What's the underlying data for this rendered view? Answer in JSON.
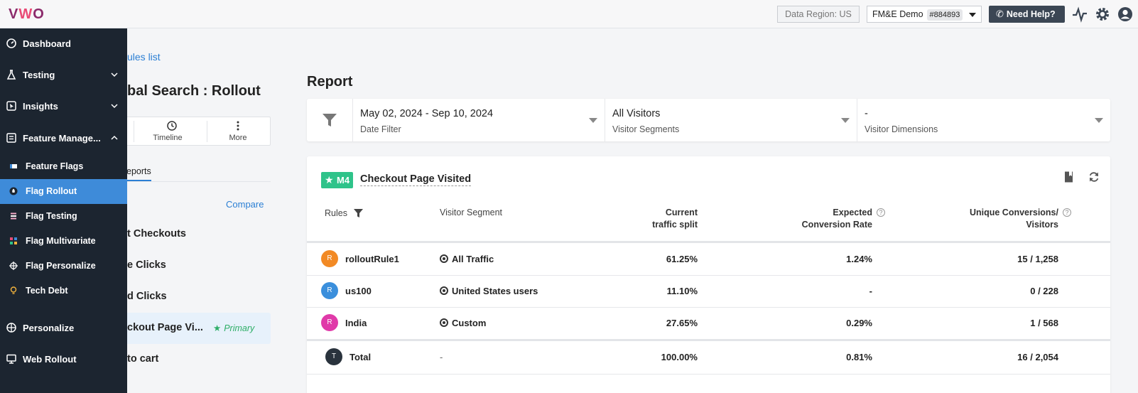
{
  "topbar": {
    "logo": "VWO",
    "data_region": "Data Region: US",
    "account_name": "FM&E Demo",
    "account_id": "#884893",
    "help_label": "Need Help?"
  },
  "sidebar": {
    "items": [
      {
        "label": "Dashboard"
      },
      {
        "label": "Testing"
      },
      {
        "label": "Insights"
      },
      {
        "label": "Feature Manage..."
      }
    ],
    "sub_items": [
      {
        "label": "Feature Flags"
      },
      {
        "label": "Flag Rollout"
      },
      {
        "label": "Flag Testing"
      },
      {
        "label": "Flag Multivariate"
      },
      {
        "label": "Flag Personalize"
      },
      {
        "label": "Tech Debt"
      }
    ],
    "bottom_items": [
      {
        "label": "Personalize"
      },
      {
        "label": "Web Rollout"
      }
    ]
  },
  "campaign": {
    "back_link": "ules list",
    "title": "bal Search : Rollout",
    "actions": {
      "timeline": "Timeline",
      "more": "More"
    },
    "tab_reports": "eports",
    "compare": "Compare",
    "goals": [
      {
        "label": "t Checkouts"
      },
      {
        "label": "e Clicks"
      },
      {
        "label": "d Clicks"
      },
      {
        "label": "ckout Page Vi...",
        "primary": "Primary"
      },
      {
        "label": "to cart"
      }
    ]
  },
  "report": {
    "heading": "Report",
    "filters": [
      {
        "value": "May 02, 2024 - Sep 10, 2024",
        "label": "Date Filter"
      },
      {
        "value": "All Visitors",
        "label": "Visitor Segments"
      },
      {
        "value": "-",
        "label": "Visitor Dimensions"
      }
    ],
    "goal": {
      "badge": "M4",
      "name": "Checkout Page Visited"
    },
    "columns": {
      "rules": "Rules",
      "segment": "Visitor Segment",
      "split_1": "Current",
      "split_2": "traffic split",
      "rate_1": "Expected",
      "rate_2": "Conversion Rate",
      "conv_1": "Unique Conversions/",
      "conv_2": "Visitors"
    },
    "rows": [
      {
        "avatar": "R",
        "name": "rolloutRule1",
        "segment": "All Traffic",
        "split": "61.25%",
        "rate": "1.24%",
        "conv": "15 / 1,258",
        "color": "#f28a25"
      },
      {
        "avatar": "R",
        "name": "us100",
        "segment": "United States users",
        "split": "11.10%",
        "rate": "-",
        "conv": "0 / 228",
        "color": "#3b8fdc"
      },
      {
        "avatar": "R",
        "name": "India",
        "segment": "Custom",
        "split": "27.65%",
        "rate": "0.29%",
        "conv": "1 / 568",
        "color": "#e03aa9"
      }
    ],
    "total": {
      "avatar": "T",
      "name": "Total",
      "segment": "-",
      "split": "100.00%",
      "rate": "0.81%",
      "conv": "16 / 2,054"
    }
  }
}
